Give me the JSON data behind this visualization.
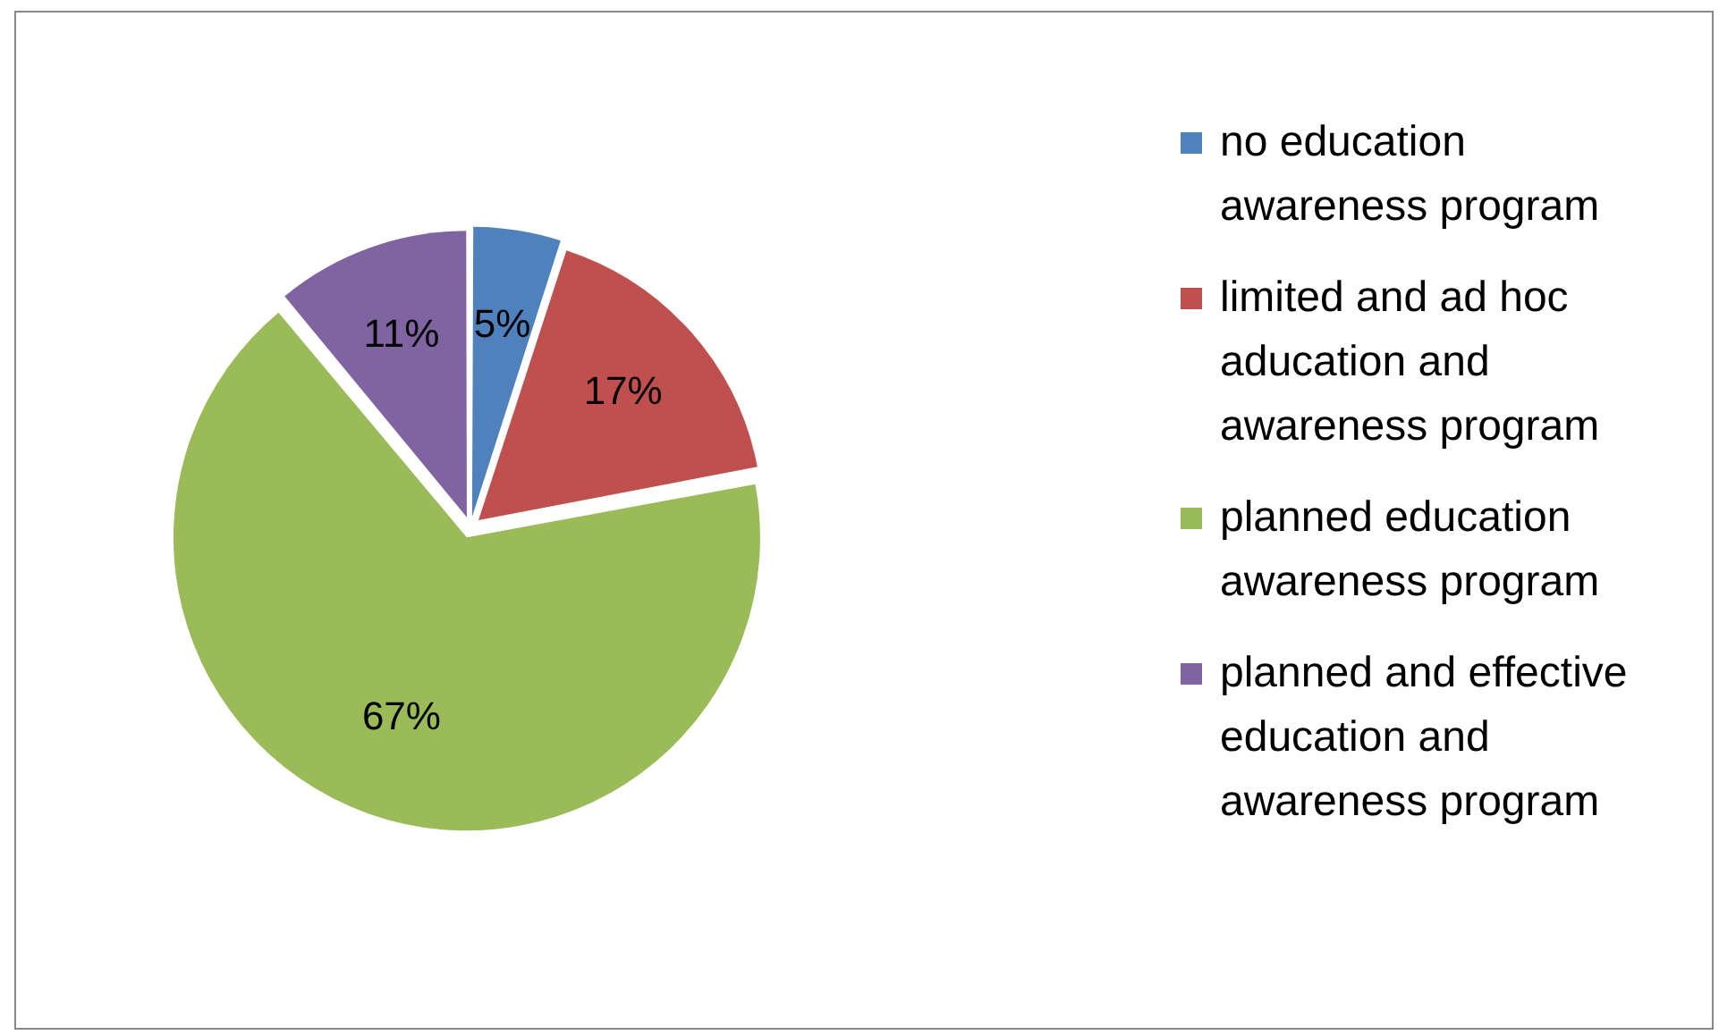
{
  "chart_data": {
    "type": "pie",
    "categories": [
      "no education awareness program",
      "limited and ad hoc aducation and awareness program",
      "planned education awareness program",
      "planned and effective education and awareness program"
    ],
    "values": [
      5,
      17,
      67,
      11
    ],
    "colors": [
      "#4f81bd",
      "#c0504d",
      "#9bbb59",
      "#8064a2"
    ],
    "value_labels": [
      "5%",
      "17%",
      "67%",
      "11%"
    ],
    "legend": "right"
  }
}
